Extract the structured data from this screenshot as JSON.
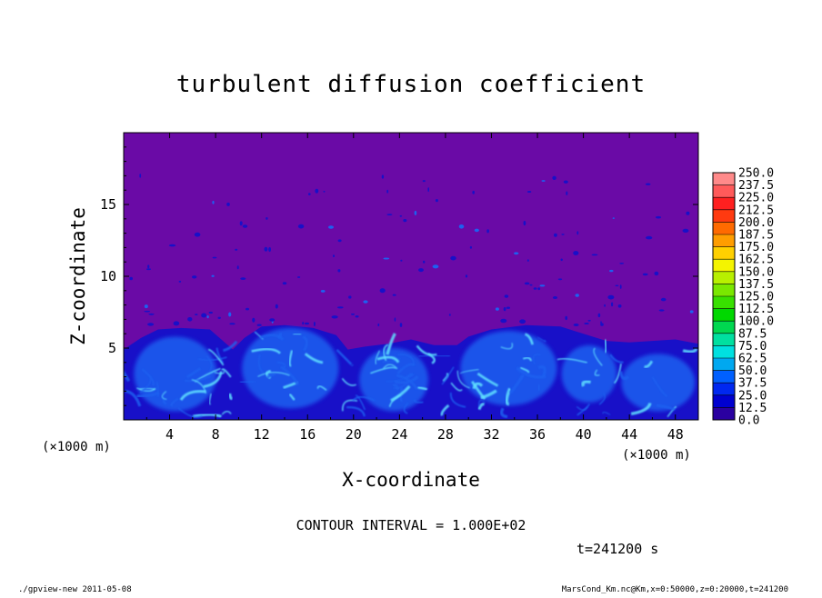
{
  "chart_data": {
    "type": "heatmap",
    "title": "turbulent diffusion coefficient",
    "xlabel": "X-coordinate",
    "ylabel": "Z-coordinate",
    "x_unit": "(×1000 m)",
    "y_unit": "(×1000 m)",
    "x_ticks": [
      4,
      8,
      12,
      16,
      20,
      24,
      28,
      32,
      36,
      40,
      44,
      48
    ],
    "y_ticks": [
      5,
      10,
      15
    ],
    "xlim": [
      0,
      50
    ],
    "ylim": [
      0,
      20
    ],
    "background_value": 0.0,
    "colorbar": {
      "levels": [
        "250.0",
        "237.5",
        "225.0",
        "212.5",
        "200.0",
        "187.5",
        "175.0",
        "162.5",
        "150.0",
        "137.5",
        "125.0",
        "112.5",
        "100.0",
        "87.5",
        "75.0",
        "62.5",
        "50.0",
        "37.5",
        "25.0",
        "12.5",
        "0.0"
      ],
      "colors": [
        "#ff8a8a",
        "#ff5a5a",
        "#ff2020",
        "#ff3a10",
        "#ff6a00",
        "#ff9d00",
        "#ffd000",
        "#f4f400",
        "#b8f000",
        "#7ae800",
        "#38e000",
        "#00d800",
        "#00d850",
        "#00e0a0",
        "#00e0e0",
        "#00a8f0",
        "#0060ff",
        "#0028f0",
        "#0000d0",
        "#2a00a0"
      ]
    },
    "contour_interval": "CONTOUR INTERVAL = 1.000E+02",
    "time_label": "t=241200 s",
    "colors": {
      "background": "#6a0aa6",
      "low": "#1810c8",
      "mid": "#1e60f0",
      "high": "#60e0ff"
    }
  },
  "footer": {
    "left": "./gpview-new   2011-05-08",
    "right": "MarsCond_Km.nc@Km,x=0:50000,z=0:20000,t=241200"
  }
}
